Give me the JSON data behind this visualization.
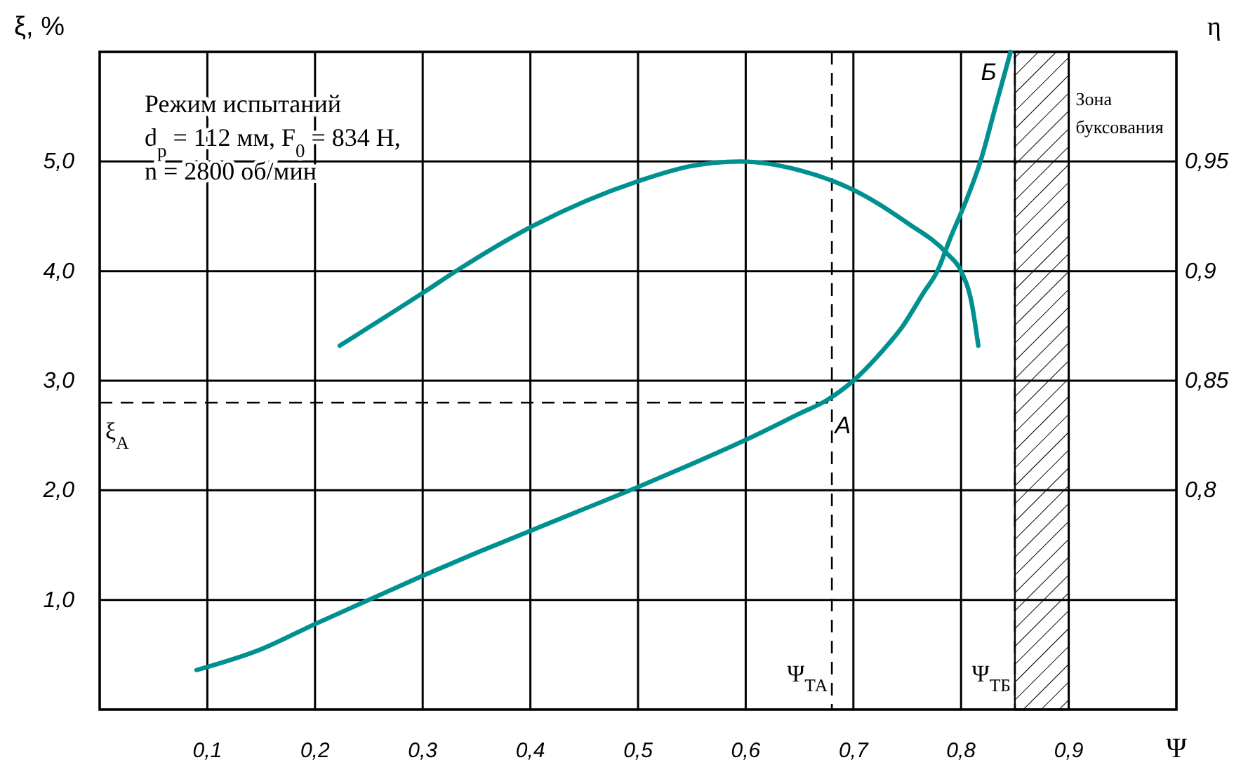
{
  "chart_data": {
    "type": "line",
    "xlabel": "Ψ",
    "ylabel": "ξ, %",
    "y2label": "η",
    "xlim": [
      0,
      1
    ],
    "xticks": [
      {
        "value": 0.1,
        "label": "0,1"
      },
      {
        "value": 0.2,
        "label": "0,2"
      },
      {
        "value": 0.3,
        "label": "0,3"
      },
      {
        "value": 0.4,
        "label": "0,4"
      },
      {
        "value": 0.5,
        "label": "0,5"
      },
      {
        "value": 0.6,
        "label": "0,6"
      },
      {
        "value": 0.7,
        "label": "0,7"
      },
      {
        "value": 0.8,
        "label": "0,8"
      },
      {
        "value": 0.9,
        "label": "0,9"
      }
    ],
    "ylim": [
      0,
      6
    ],
    "yticks": [
      {
        "value": 1,
        "label": "1,0"
      },
      {
        "value": 2,
        "label": "2,0"
      },
      {
        "value": 3,
        "label": "3,0"
      },
      {
        "value": 4,
        "label": "4,0"
      },
      {
        "value": 5,
        "label": "5,0"
      }
    ],
    "y2lim": [
      0.7,
      1.0
    ],
    "y2ticks": [
      {
        "value": 0.8,
        "label": "0,8"
      },
      {
        "value": 0.85,
        "label": "0,85"
      },
      {
        "value": 0.9,
        "label": "0,9"
      },
      {
        "value": 0.95,
        "label": "0,95"
      }
    ],
    "grid": true,
    "line_style": "solid",
    "marker": "none",
    "series": [
      {
        "color": "#009090",
        "x": [
          0.09,
          0.15,
          0.2,
          0.25,
          0.3,
          0.35,
          0.4,
          0.45,
          0.5,
          0.55,
          0.6,
          0.65,
          0.675,
          0.7,
          0.725,
          0.746,
          0.765,
          0.778,
          0.79,
          0.805,
          0.818,
          0.832,
          0.846
        ],
        "values": [
          0.36,
          0.55,
          0.78,
          1.0,
          1.22,
          1.43,
          1.63,
          1.83,
          2.03,
          2.24,
          2.46,
          2.7,
          2.82,
          3.0,
          3.25,
          3.5,
          3.8,
          4.0,
          4.3,
          4.65,
          5.0,
          5.5,
          6.0
        ]
      },
      {
        "color": "#009090",
        "axis": "y2",
        "x": [
          0.223,
          0.3,
          0.331,
          0.4,
          0.5,
          0.55,
          0.595,
          0.65,
          0.7,
          0.75,
          0.787,
          0.8,
          0.81,
          0.816
        ],
        "values": [
          0.866,
          0.89,
          0.9,
          0.92,
          0.941,
          0.948,
          0.95,
          0.946,
          0.937,
          0.922,
          0.908,
          0.9,
          0.885,
          0.866
        ]
      }
    ],
    "ref_lines": [
      {
        "axis": "y",
        "value": 2.8,
        "label": "ξ$_{А}$",
        "line_style": "dashed"
      },
      {
        "axis": "x",
        "value": 0.68,
        "label": "Ψ$_{ТА}$",
        "line_style": "dashed"
      },
      {
        "axis": "x",
        "value": 0.85,
        "label": "Ψ$_{ТБ}$",
        "line_style": "dashed"
      }
    ],
    "bands": [
      {
        "axis": "x",
        "from": 0.85,
        "to": 0.9,
        "label": "Зона буксования"
      }
    ],
    "annotations": [
      "Режим испытаний",
      "d$_{p}$ = 112 мм, F$_{0}$ = 834 Н,",
      "n = 2800 об/мин",
      {
        "text": "А",
        "x": 0.675,
        "y": 2.8
      },
      {
        "text": "Б",
        "x": 0.846,
        "y": 6.0
      }
    ]
  }
}
